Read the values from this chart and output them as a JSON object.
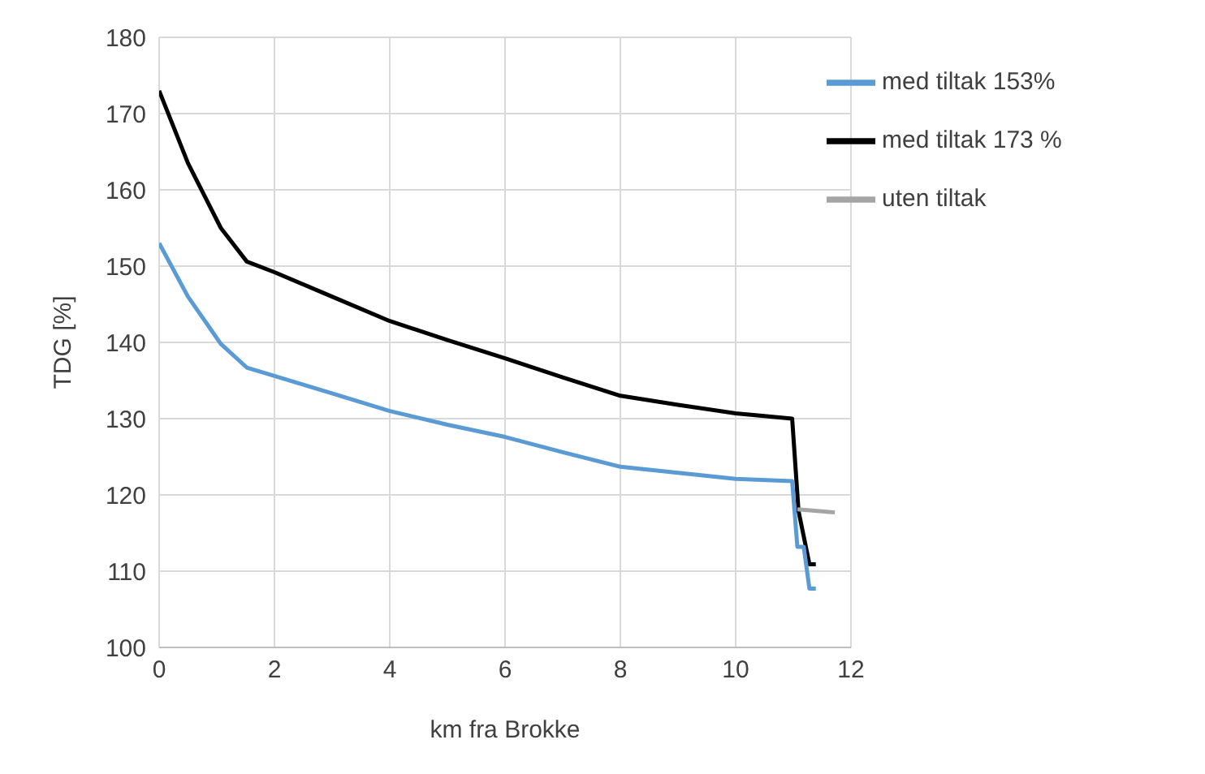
{
  "chart_data": {
    "type": "line",
    "xlabel": "km fra Brokke",
    "ylabel": "TDG [%]",
    "xlim": [
      0,
      12
    ],
    "xticks": [
      0,
      2,
      4,
      6,
      8,
      10,
      12
    ],
    "ylim": [
      100,
      180
    ],
    "yticks": [
      100,
      110,
      120,
      130,
      140,
      150,
      160,
      170,
      180
    ],
    "grid": true,
    "legend": "top right",
    "marker": "none",
    "line_style": "solid",
    "series": [
      {
        "name": "med tiltak 173 %",
        "color": "#000000",
        "x": [
          0,
          0.5,
          1.07,
          1.52,
          2,
          3,
          4,
          5,
          6,
          7,
          8,
          9,
          10,
          10.98,
          11.09,
          11.28,
          11.39
        ],
        "values": [
          173,
          163.5,
          155,
          150.6,
          149.2,
          146,
          142.8,
          140.3,
          137.9,
          135.4,
          133,
          131.8,
          130.7,
          130,
          117.9,
          110.9,
          110.9
        ]
      },
      {
        "name": "med tiltak 153%",
        "color": "#5b9bd5",
        "x": [
          0,
          0.5,
          1.07,
          1.52,
          2,
          3,
          4,
          5,
          6,
          7,
          8,
          9,
          10,
          10.98,
          11.07,
          11.18,
          11.28,
          11.39
        ],
        "values": [
          153,
          146,
          139.8,
          136.7,
          135.6,
          133.3,
          131,
          129.2,
          127.6,
          125.6,
          123.7,
          122.9,
          122.1,
          121.8,
          113.2,
          113.2,
          107.7,
          107.7
        ]
      },
      {
        "name": "uten tiltak",
        "color": "#a5a5a5",
        "x": [
          11.07,
          11.72
        ],
        "values": [
          118.1,
          117.7
        ]
      }
    ]
  }
}
